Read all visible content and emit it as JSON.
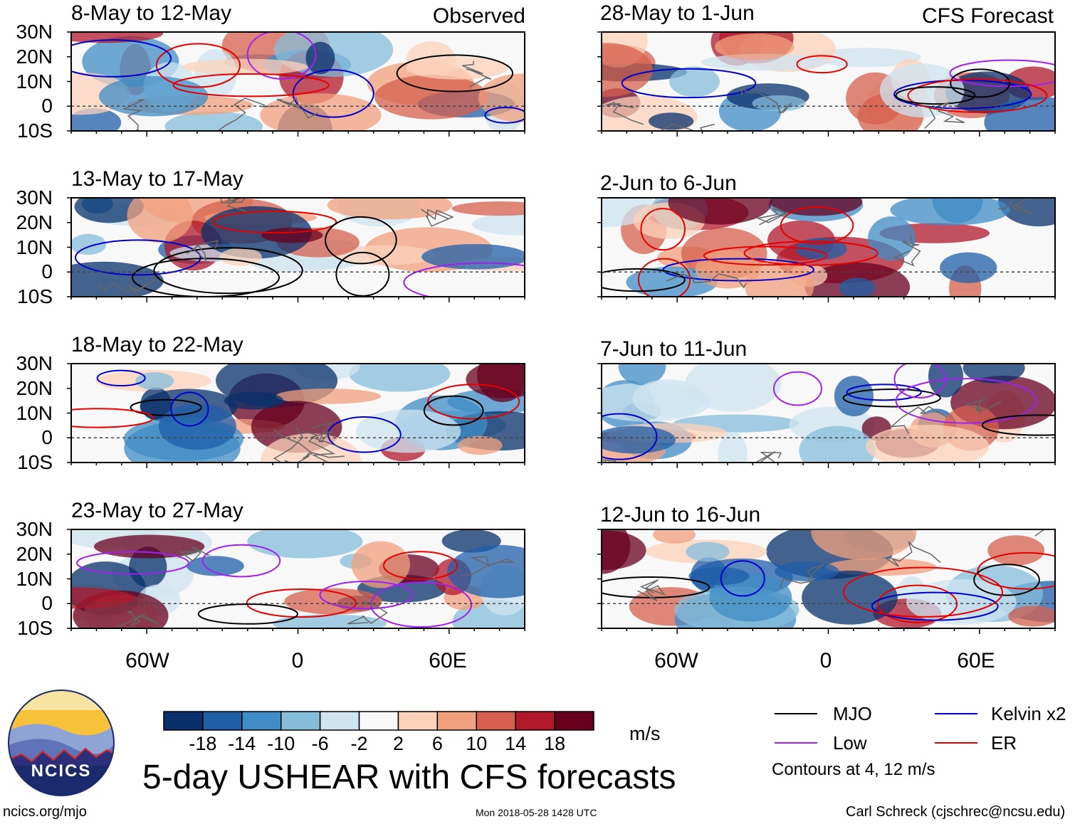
{
  "header": {
    "left_tag": "Observed",
    "right_tag": "CFS Forecast"
  },
  "observed_panels": [
    {
      "title": "8-May to 12-May"
    },
    {
      "title": "13-May to 17-May"
    },
    {
      "title": "18-May to 22-May"
    },
    {
      "title": "23-May to 27-May"
    }
  ],
  "forecast_panels": [
    {
      "title": "28-May to 1-Jun"
    },
    {
      "title": "2-Jun to 6-Jun"
    },
    {
      "title": "7-Jun to 11-Jun"
    },
    {
      "title": "12-Jun to 16-Jun"
    }
  ],
  "colors": {
    "MJO": "#000000",
    "Low": "#a020f0",
    "Kelvin": "#0000cc",
    "ER": "#e60000"
  },
  "chart_data": {
    "type": "heatmap",
    "title": "5-day USHEAR with CFS forecasts",
    "variable": "USHEAR",
    "units": "m/s",
    "lat_ticks": [
      "30N",
      "20N",
      "10N",
      "0",
      "10S"
    ],
    "lon_ticks": [
      "60W",
      "0",
      "60E"
    ],
    "lat_range": [
      -10,
      30
    ],
    "lon_range": [
      -90,
      90
    ],
    "colorbar": {
      "levels": [
        "-18",
        "-14",
        "-10",
        "-6",
        "-2",
        "2",
        "6",
        "10",
        "14",
        "18"
      ],
      "colors": [
        "#08306b",
        "#1f5fa8",
        "#3f8cc6",
        "#86bddb",
        "#cfe4f0",
        "#f8f8f8",
        "#fcd1b9",
        "#f2a07e",
        "#d6604d",
        "#b2182b",
        "#67001f"
      ]
    },
    "contour_note": "Contours at 4, 12 m/s",
    "legend": [
      {
        "label": "MJO",
        "color": "#000000"
      },
      {
        "label": "Kelvin x2",
        "color": "#0000cc"
      },
      {
        "label": "Low",
        "color": "#a020f0"
      },
      {
        "label": "ER",
        "color": "#e60000"
      }
    ]
  },
  "footer": {
    "logo_text": "NCICS",
    "url": "ncics.org/mjo",
    "timestamp": "Mon 2018-05-28 1428 UTC",
    "author": "Carl Schreck (cjschrec@ncsu.edu)"
  }
}
